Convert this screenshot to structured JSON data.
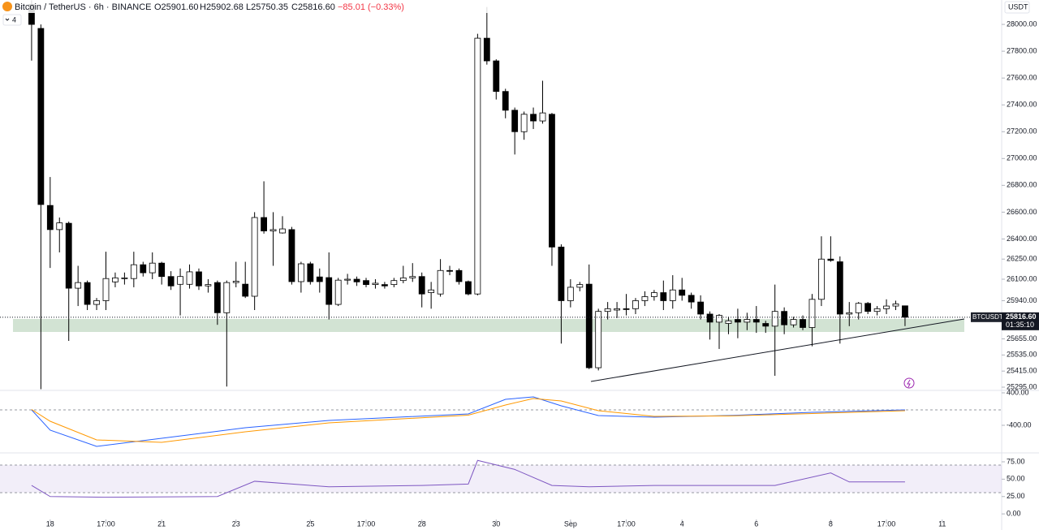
{
  "chart_data": [
    {
      "type": "candlestick",
      "title": "Bitcoin / TetherUS · 6h · BINANCE",
      "legend": {
        "open": "O25901.60",
        "high": "H25902.68",
        "low": "L25750.35",
        "close": "C25816.60",
        "change": "−85.01 (−0.33%)"
      },
      "indicators_count": "4",
      "currency": "USDT",
      "last_label": {
        "symbol": "BTCUSDT",
        "price": "25816.60",
        "countdown": "01:35:10"
      },
      "up_color": "#ffffff",
      "down_color": "#000000",
      "open": [
        28150,
        27970,
        26650,
        26470,
        26517,
        26033,
        26075,
        25912,
        25940,
        26080,
        26105,
        26105,
        26208,
        26148,
        26220,
        26120,
        26062,
        26062,
        26155,
        26050,
        26075,
        25850,
        26075,
        26063,
        25973,
        26560,
        26460,
        26445,
        26470,
        26082,
        26215,
        26117,
        26112,
        25912,
        26093,
        26100,
        26090,
        26060,
        26060,
        26060,
        26090,
        26110,
        26120,
        26000,
        25990,
        26165,
        26165,
        26082,
        25990,
        27897,
        27728,
        27500,
        27360,
        27200,
        27330,
        27280,
        27330,
        26340,
        25940,
        26040,
        26063,
        25440,
        25860,
        25870,
        25880,
        25880,
        25940,
        25970,
        26000,
        25940,
        26020,
        25980,
        25930,
        25840,
        25780,
        25770,
        25800,
        25780,
        25800,
        25770,
        25750,
        25860,
        25760,
        25800,
        25740,
        25950,
        26250,
        26230,
        25840,
        25850,
        25920,
        25860,
        25880,
        25900,
        25901.6
      ],
      "high": [
        28180,
        28000,
        26862,
        26560,
        26530,
        26200,
        26090,
        25960,
        26305,
        26150,
        26150,
        26305,
        26230,
        26300,
        26230,
        26160,
        26180,
        26210,
        26180,
        26100,
        26090,
        26090,
        26230,
        26230,
        26600,
        26830,
        26600,
        26570,
        26490,
        26230,
        26230,
        26180,
        26300,
        26110,
        26140,
        26120,
        26110,
        26100,
        26080,
        26110,
        26200,
        26220,
        26150,
        26080,
        26250,
        26200,
        26180,
        26090,
        27930,
        28130,
        27740,
        27520,
        27380,
        27350,
        27380,
        27580,
        27340,
        26360,
        26100,
        26080,
        26210,
        25880,
        25930,
        25930,
        25990,
        25960,
        26010,
        26020,
        26090,
        26130,
        26110,
        26000,
        25980,
        25860,
        25840,
        25820,
        25880,
        25850,
        25900,
        25790,
        26060,
        25890,
        25820,
        25830,
        25990,
        26420,
        26420,
        26270,
        25930,
        25930,
        25930,
        25900,
        25950,
        25940,
        25902.68
      ],
      "low": [
        27730,
        25280,
        26184,
        26300,
        25640,
        25900,
        25870,
        25870,
        25870,
        26040,
        26060,
        26040,
        26120,
        26100,
        26060,
        26020,
        25830,
        26030,
        26020,
        26000,
        25760,
        25300,
        26040,
        25960,
        25870,
        26440,
        26200,
        26440,
        26060,
        26000,
        26060,
        26000,
        25800,
        25900,
        26060,
        26050,
        26040,
        26030,
        26030,
        26040,
        26070,
        26080,
        25890,
        25880,
        25970,
        26130,
        26060,
        25980,
        25980,
        27700,
        27440,
        27300,
        27030,
        27140,
        27220,
        27260,
        26200,
        25620,
        25890,
        26010,
        25430,
        25420,
        25800,
        25810,
        25830,
        25840,
        25900,
        25940,
        25870,
        25880,
        25940,
        25880,
        25800,
        25650,
        25580,
        25690,
        25660,
        25720,
        25700,
        25700,
        25380,
        25690,
        25740,
        25720,
        25600,
        25900,
        26230,
        25620,
        25750,
        25800,
        25840,
        25830,
        25840,
        25870,
        25750.35
      ],
      "close": [
        28000,
        26657,
        26470,
        26520,
        26033,
        26075,
        25912,
        25940,
        26105,
        26110,
        26110,
        26208,
        26148,
        26220,
        26120,
        26050,
        26120,
        26155,
        26050,
        26060,
        25850,
        26075,
        26085,
        25973,
        26560,
        26460,
        26470,
        26475,
        26082,
        26215,
        26082,
        26082,
        25912,
        26093,
        26100,
        26080,
        26060,
        26070,
        26050,
        26090,
        26110,
        26120,
        25990,
        26020,
        26165,
        26160,
        26082,
        25990,
        27897,
        27728,
        27500,
        27360,
        27200,
        27330,
        27280,
        27340,
        26340,
        25940,
        26040,
        26060,
        25440,
        25860,
        25880,
        25880,
        25875,
        25940,
        25970,
        26000,
        25940,
        26020,
        25980,
        25930,
        25840,
        25780,
        25830,
        25790,
        25780,
        25800,
        25780,
        25750,
        25860,
        25760,
        25800,
        25740,
        25950,
        26250,
        26240,
        25840,
        25850,
        25920,
        25860,
        25880,
        25900,
        25916,
        25816.6
      ],
      "ylim": [
        25277,
        28182
      ],
      "yticks": [
        {
          "value": 28000,
          "label": "28000.00"
        },
        {
          "value": 27800,
          "label": "27800.00"
        },
        {
          "value": 27600,
          "label": "27600.00"
        },
        {
          "value": 27400,
          "label": "27400.00"
        },
        {
          "value": 27200,
          "label": "27200.00"
        },
        {
          "value": 27000,
          "label": "27000.00"
        },
        {
          "value": 26800,
          "label": "26800.00"
        },
        {
          "value": 26600,
          "label": "26600.00"
        },
        {
          "value": 26400,
          "label": "26400.00"
        },
        {
          "value": 26250,
          "label": "26250.00"
        },
        {
          "value": 26100,
          "label": "26100.00"
        },
        {
          "value": 25940,
          "label": "25940.00"
        },
        {
          "value": 25655,
          "label": "25655.00"
        },
        {
          "value": 25535,
          "label": "25535.00"
        },
        {
          "value": 25415,
          "label": "25415.00"
        },
        {
          "value": 25295,
          "label": "25295.00"
        }
      ],
      "xlim": [
        -3.4,
        104.4
      ],
      "xticks": [
        {
          "value": 2,
          "label": "18"
        },
        {
          "value": 8,
          "label": "17:00"
        },
        {
          "value": 14,
          "label": "21"
        },
        {
          "value": 22,
          "label": "23"
        },
        {
          "value": 30,
          "label": "25"
        },
        {
          "value": 36,
          "label": "17:00"
        },
        {
          "value": 42,
          "label": "28"
        },
        {
          "value": 50,
          "label": "30"
        },
        {
          "value": 58,
          "label": "Sep"
        },
        {
          "value": 64,
          "label": "17:00"
        },
        {
          "value": 70,
          "label": "4"
        },
        {
          "value": 78,
          "label": "6"
        },
        {
          "value": 86,
          "label": "8"
        },
        {
          "value": 92,
          "label": "17:00"
        },
        {
          "value": 98,
          "label": "11"
        }
      ]
    },
    {
      "type": "line",
      "x": [
        0,
        2,
        7,
        14,
        23,
        32,
        47,
        51,
        54,
        57,
        61,
        67,
        75,
        84,
        94
      ],
      "series": [
        {
          "color": "#2962ff",
          "values": [
            -20,
            -520,
            -920,
            -720,
            -460,
            -280,
            -120,
            240,
            300,
            80,
            -160,
            -200,
            -160,
            -80,
            -20
          ]
        },
        {
          "color": "#ff9800",
          "values": [
            -10,
            -300,
            -760,
            -820,
            -560,
            -340,
            -150,
            100,
            260,
            200,
            -40,
            -180,
            -170,
            -110,
            -40
          ]
        }
      ],
      "ylim": [
        -1060,
        440
      ],
      "yticks": [
        {
          "value": 400,
          "label": "400.00"
        },
        {
          "value": -400,
          "label": "-400.00"
        }
      ]
    },
    {
      "type": "line",
      "x": [
        0,
        2,
        8,
        20,
        24,
        32,
        42,
        47,
        48,
        52,
        56,
        60,
        67,
        80,
        86,
        88,
        94
      ],
      "series": [
        {
          "color": "#7e57c2",
          "values": [
            41,
            25,
            24,
            25,
            47,
            39,
            41,
            43,
            77,
            64,
            41,
            39,
            41,
            41,
            59,
            46,
            46
          ]
        }
      ],
      "ylim": [
        -8,
        85.5
      ],
      "yticks": [
        {
          "value": 75,
          "label": "75.00"
        },
        {
          "value": 50,
          "label": "50.00"
        },
        {
          "value": 25,
          "label": "25.00"
        },
        {
          "value": 0,
          "label": "0.00"
        }
      ]
    }
  ]
}
